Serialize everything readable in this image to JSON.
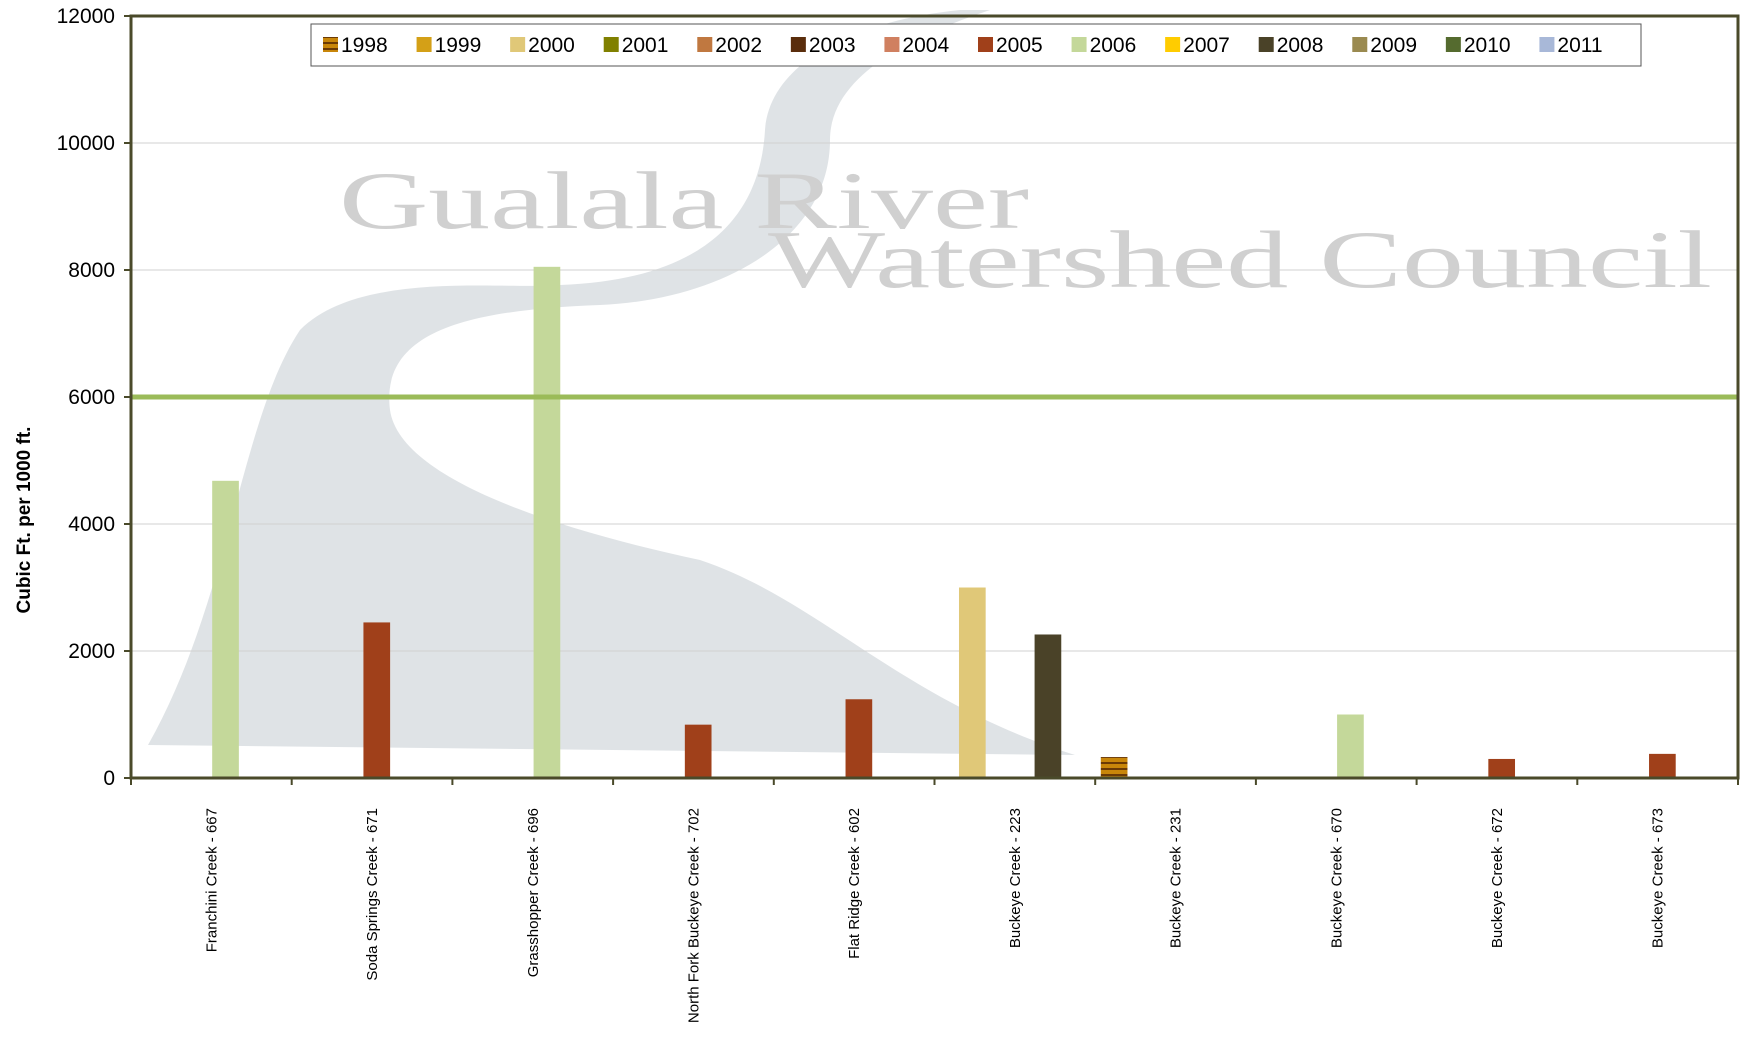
{
  "chart_data": {
    "type": "bar",
    "y_label": "Cubic Ft. per 1000 ft.",
    "watermark": [
      "Gualala River",
      "Watershed Council"
    ],
    "categories": [
      "Franchini Creek - 667",
      "Soda Springs Creek - 671",
      "Grasshopper Creek - 696",
      "North Fork Buckeye Creek - 702",
      "Flat Ridge Creek - 602",
      "Buckeye Creek - 223",
      "Buckeye Creek - 231",
      "Buckeye Creek - 670",
      "Buckeye Creek - 672",
      "Buckeye Creek - 673"
    ],
    "series": [
      {
        "name": "1998",
        "color": "#c8860a",
        "values": [
          null,
          null,
          null,
          null,
          null,
          null,
          330,
          null,
          null,
          null
        ]
      },
      {
        "name": "1999",
        "color": "#d4a017",
        "values": [
          null,
          null,
          null,
          null,
          null,
          null,
          null,
          null,
          null,
          null
        ]
      },
      {
        "name": "2000",
        "color": "#e0c878",
        "values": [
          null,
          null,
          null,
          null,
          null,
          3000,
          null,
          null,
          null,
          null
        ]
      },
      {
        "name": "2001",
        "color": "#808000",
        "values": [
          null,
          null,
          null,
          null,
          null,
          null,
          null,
          null,
          null,
          null
        ]
      },
      {
        "name": "2002",
        "color": "#c07840",
        "values": [
          null,
          null,
          null,
          null,
          null,
          null,
          null,
          null,
          null,
          null
        ]
      },
      {
        "name": "2003",
        "color": "#5a2d0c",
        "values": [
          null,
          null,
          null,
          null,
          null,
          null,
          null,
          null,
          null,
          null
        ]
      },
      {
        "name": "2004",
        "color": "#d08060",
        "values": [
          null,
          null,
          null,
          null,
          null,
          null,
          null,
          null,
          null,
          null
        ]
      },
      {
        "name": "2005",
        "color": "#a0401a",
        "values": [
          null,
          2450,
          null,
          840,
          1240,
          null,
          null,
          null,
          300,
          380
        ]
      },
      {
        "name": "2006",
        "color": "#c4d89a",
        "values": [
          4680,
          null,
          8050,
          null,
          null,
          null,
          null,
          1000,
          null,
          null
        ]
      },
      {
        "name": "2007",
        "color": "#ffcc00",
        "values": [
          null,
          null,
          null,
          null,
          null,
          null,
          null,
          null,
          null,
          null
        ]
      },
      {
        "name": "2008",
        "color": "#4a4228",
        "values": [
          null,
          null,
          null,
          null,
          null,
          2260,
          null,
          null,
          null,
          null
        ]
      },
      {
        "name": "2009",
        "color": "#9a8a50",
        "values": [
          null,
          null,
          null,
          null,
          null,
          null,
          null,
          null,
          null,
          null
        ]
      },
      {
        "name": "2010",
        "color": "#556b2f",
        "values": [
          null,
          null,
          null,
          null,
          null,
          null,
          null,
          null,
          null,
          null
        ]
      },
      {
        "name": "2011",
        "color": "#a8b8d8",
        "values": [
          null,
          null,
          null,
          null,
          null,
          null,
          null,
          null,
          null,
          null
        ]
      }
    ],
    "reference_line": {
      "value": 6000,
      "color": "#9bbb59"
    },
    "ylim": [
      0,
      12000
    ],
    "yticks": [
      0,
      2000,
      4000,
      6000,
      8000,
      10000,
      12000
    ],
    "grid": true
  }
}
